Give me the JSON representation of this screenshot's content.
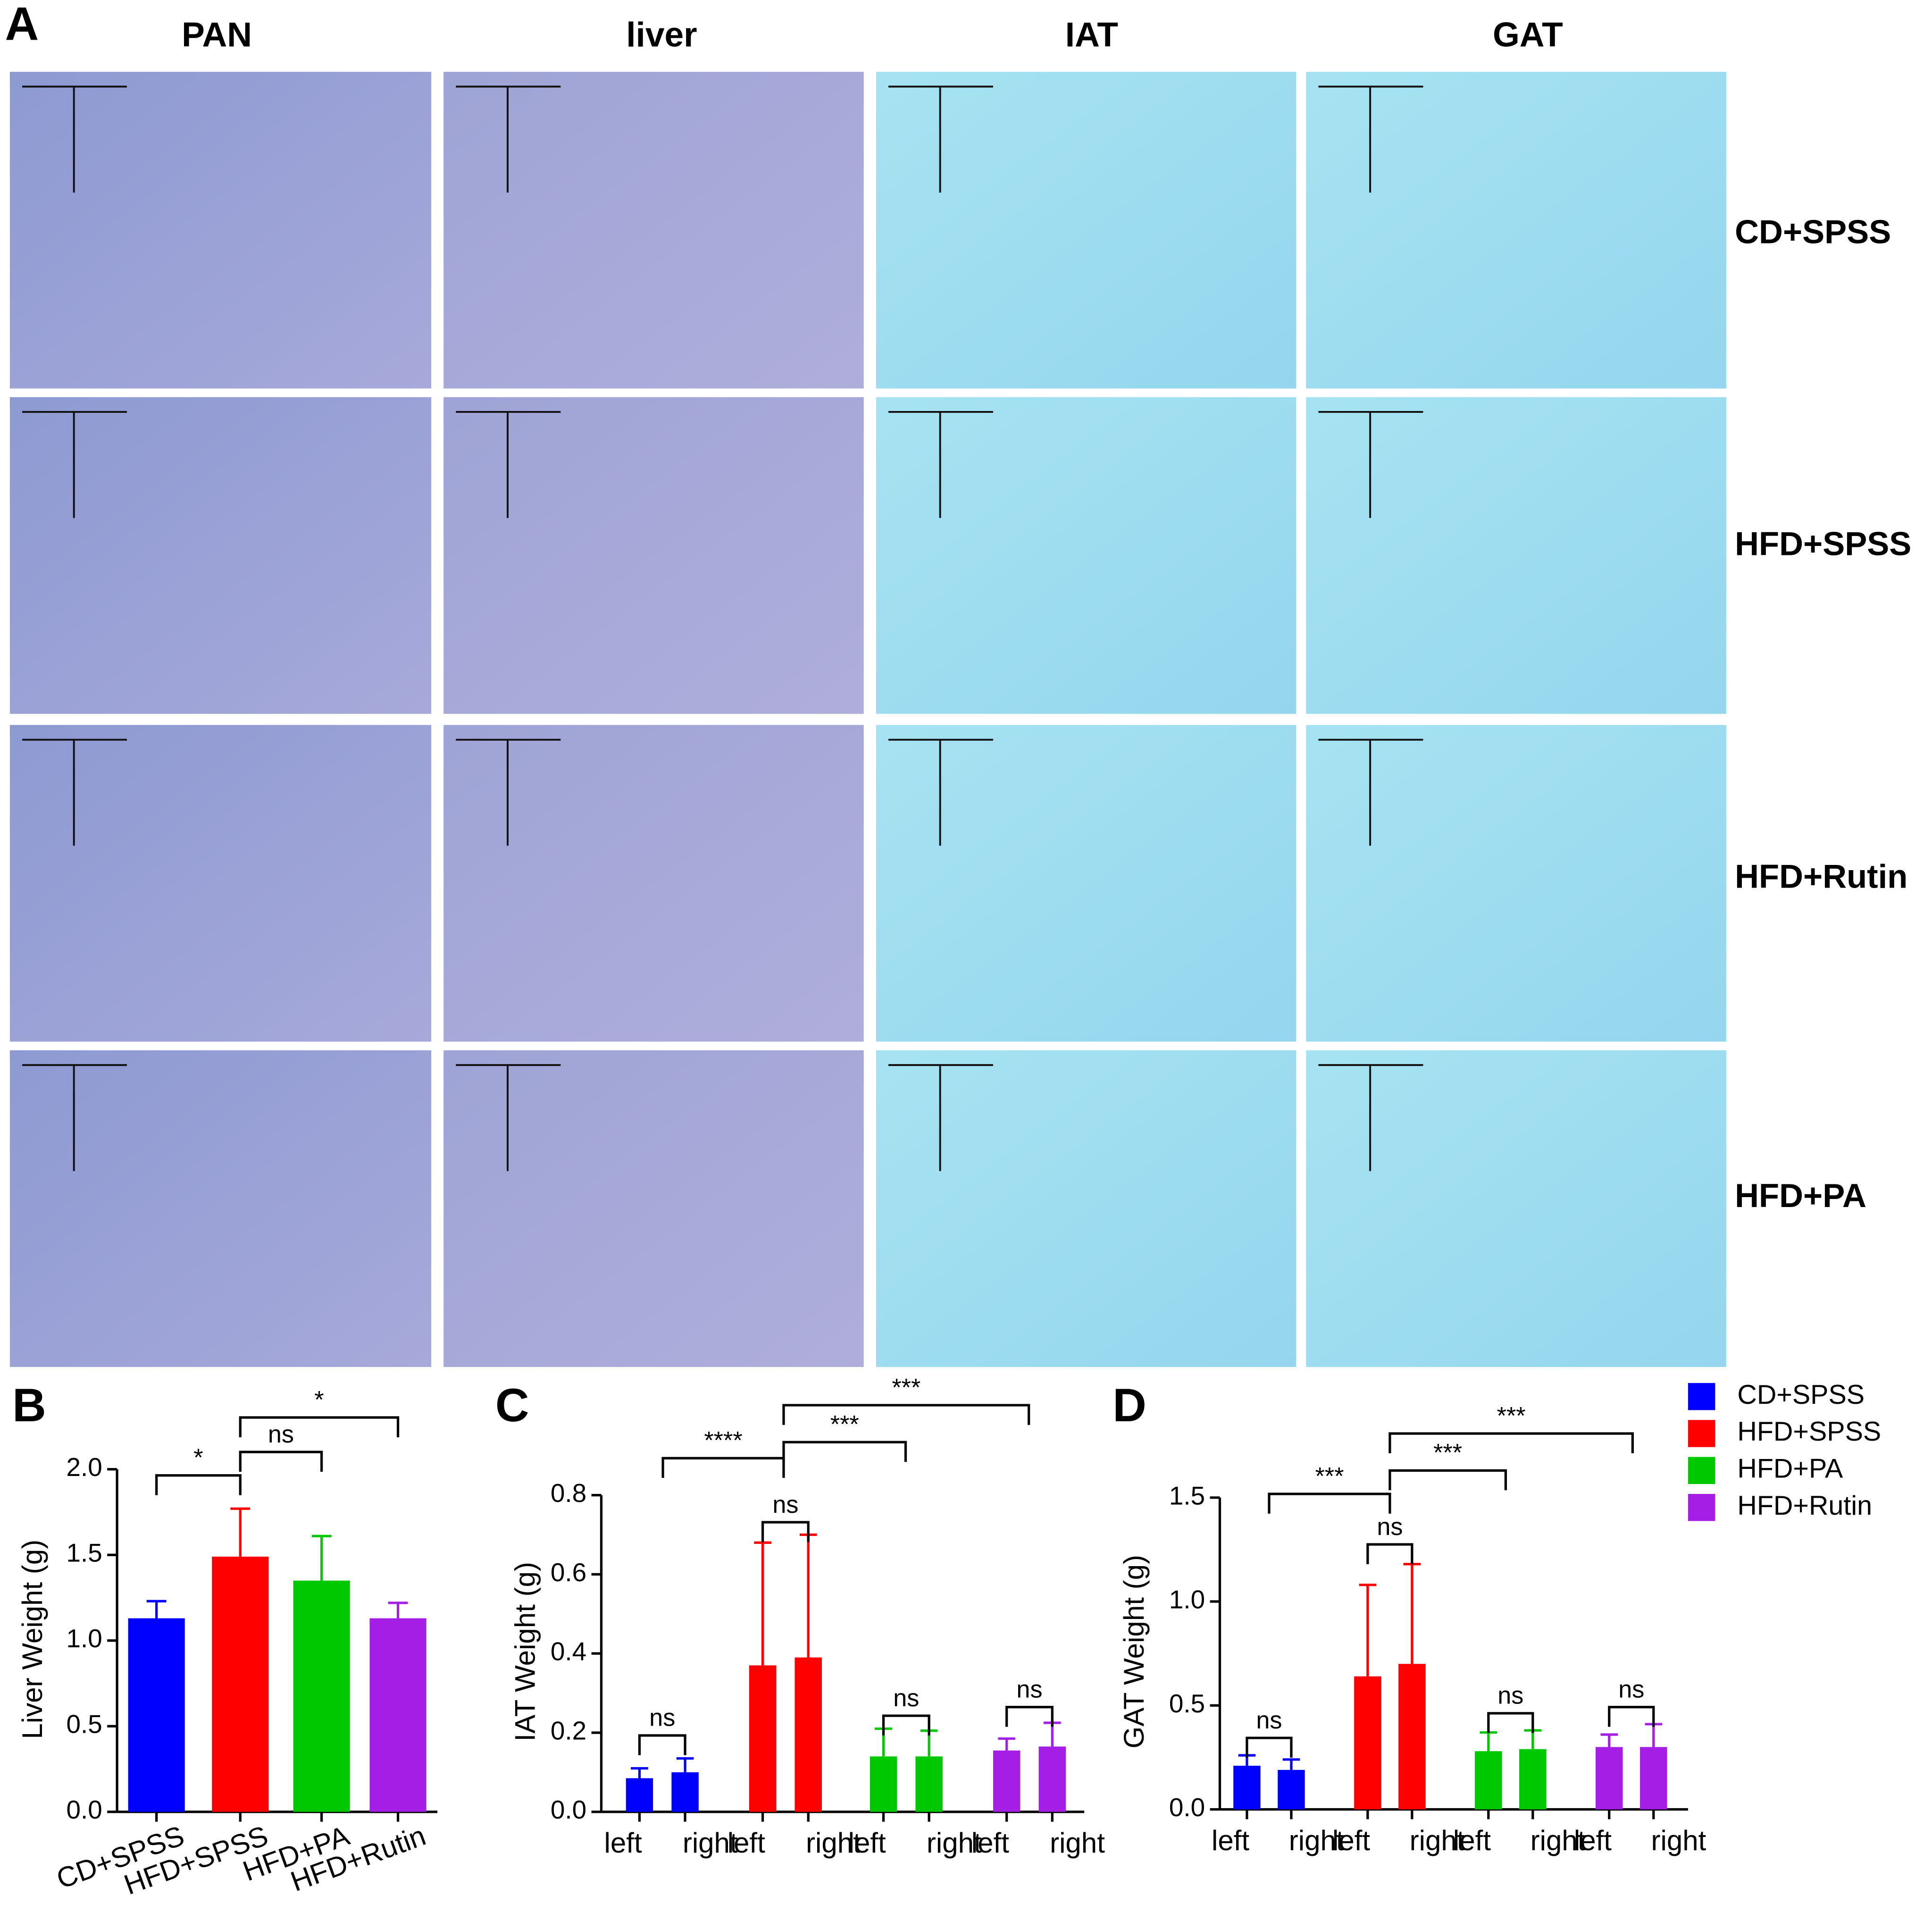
{
  "panel_a": {
    "label": "A",
    "columns": [
      "PAN",
      "liver",
      "IAT",
      "GAT"
    ],
    "rows": [
      "CD+SPSS",
      "HFD+SPSS",
      "HFD+Rutin",
      "HFD+PA"
    ]
  },
  "chart_data": [
    {
      "type": "bar",
      "panel": "B",
      "ylabel": "Liver Weight (g)",
      "categories": [
        "CD+SPSS",
        "HFD+SPSS",
        "HFD+PA",
        "HFD+Rutin"
      ],
      "values": [
        1.13,
        1.49,
        1.35,
        1.13
      ],
      "errors": [
        0.1,
        0.28,
        0.26,
        0.09
      ],
      "colors": [
        "#0000ff",
        "#ff0000",
        "#00c800",
        "#a51ee6"
      ],
      "ylim": [
        0,
        2.0
      ],
      "yticks": [
        {
          "value": 0,
          "label": "0.0"
        },
        0.5,
        {
          "value": 1,
          "label": "1.0"
        },
        1.5,
        {
          "value": 2,
          "label": "2.0"
        }
      ],
      "annotations": [
        "*",
        "ns",
        "*"
      ]
    },
    {
      "type": "grouped-bar",
      "panel": "C",
      "ylabel": "IAT Weight (g)",
      "categories": [
        "left",
        "right"
      ],
      "series": [
        {
          "name": "CD+SPSS",
          "color": "#0000ff",
          "values": [
            0.085,
            0.1
          ],
          "errors": [
            0.025,
            0.035
          ]
        },
        {
          "name": "HFD+SPSS",
          "color": "#ff0000",
          "values": [
            0.37,
            0.39
          ],
          "errors": [
            0.31,
            0.31
          ]
        },
        {
          "name": "HFD+PA",
          "color": "#00c800",
          "values": [
            0.14,
            0.14
          ],
          "errors": [
            0.07,
            0.065
          ]
        },
        {
          "name": "HFD+Rutin",
          "color": "#a51ee6",
          "values": [
            0.155,
            0.165
          ],
          "errors": [
            0.03,
            0.06
          ]
        }
      ],
      "ylim": [
        0,
        0.8
      ],
      "yticks": [
        {
          "value": 0,
          "label": "0.0"
        },
        0.2,
        0.4,
        0.6,
        0.8
      ],
      "legend": false,
      "annotations": [
        "***",
        "***",
        "****",
        "ns",
        "ns",
        "ns",
        "ns"
      ]
    },
    {
      "type": "grouped-bar",
      "panel": "D",
      "ylabel": "GAT Weight (g)",
      "categories": [
        "left",
        "right"
      ],
      "series": [
        {
          "name": "CD+SPSS",
          "color": "#0000ff",
          "values": [
            0.21,
            0.19
          ],
          "errors": [
            0.05,
            0.05
          ]
        },
        {
          "name": "HFD+SPSS",
          "color": "#ff0000",
          "values": [
            0.64,
            0.7
          ],
          "errors": [
            0.44,
            0.48
          ]
        },
        {
          "name": "HFD+PA",
          "color": "#00c800",
          "values": [
            0.28,
            0.29
          ],
          "errors": [
            0.09,
            0.09
          ]
        },
        {
          "name": "HFD+Rutin",
          "color": "#a51ee6",
          "values": [
            0.3,
            0.3
          ],
          "errors": [
            0.06,
            0.11
          ]
        }
      ],
      "ylim": [
        0,
        1.5
      ],
      "yticks": [
        {
          "value": 0,
          "label": "0.0"
        },
        0.5,
        {
          "value": 1,
          "label": "1.0"
        },
        1.5
      ],
      "legend": true,
      "legend_position": "right",
      "annotations": [
        "***",
        "***",
        "***",
        "ns",
        "ns",
        "ns",
        "ns"
      ]
    }
  ]
}
